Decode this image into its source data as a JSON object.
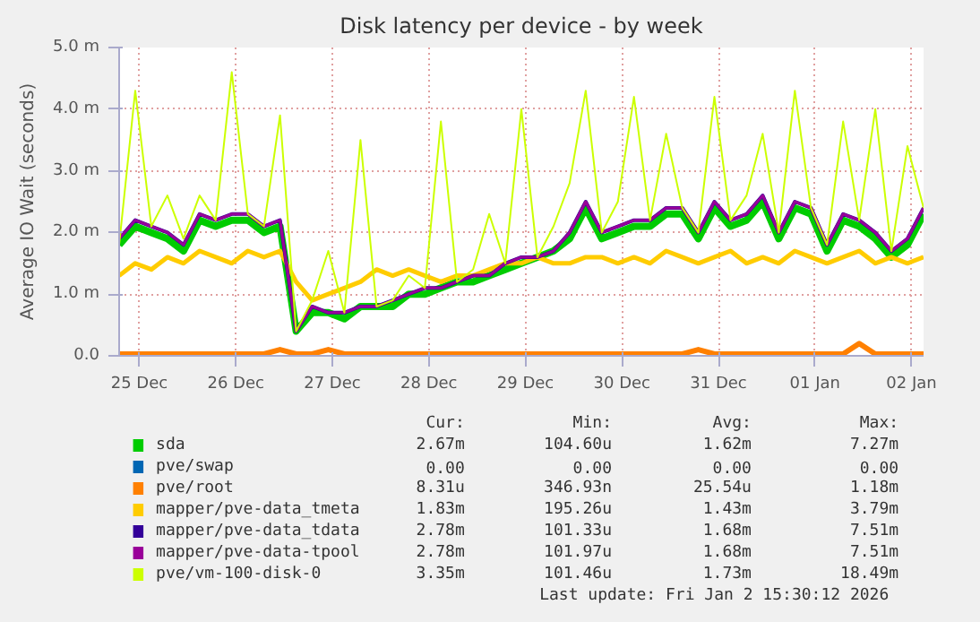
{
  "chart_data": {
    "type": "line",
    "title": "Disk latency per device - by week",
    "ylabel": "Average IO Wait (seconds)",
    "x": [
      "2025-12-24T19:00",
      "2025-12-24T23:00",
      "2025-12-25T03:00",
      "2025-12-25T07:00",
      "2025-12-25T11:00",
      "2025-12-25T15:00",
      "2025-12-25T19:00",
      "2025-12-25T23:00",
      "2025-12-26T03:00",
      "2025-12-26T07:00",
      "2025-12-26T11:00",
      "2025-12-26T15:00",
      "2025-12-26T19:00",
      "2025-12-26T23:00",
      "2025-12-27T03:00",
      "2025-12-27T07:00",
      "2025-12-27T11:00",
      "2025-12-27T15:00",
      "2025-12-27T19:00",
      "2025-12-27T23:00",
      "2025-12-28T03:00",
      "2025-12-28T07:00",
      "2025-12-28T11:00",
      "2025-12-28T15:00",
      "2025-12-28T19:00",
      "2025-12-28T23:00",
      "2025-12-29T03:00",
      "2025-12-29T07:00",
      "2025-12-29T11:00",
      "2025-12-29T15:00",
      "2025-12-29T19:00",
      "2025-12-29T23:00",
      "2025-12-30T03:00",
      "2025-12-30T07:00",
      "2025-12-30T11:00",
      "2025-12-30T15:00",
      "2025-12-30T19:00",
      "2025-12-30T23:00",
      "2025-12-31T03:00",
      "2025-12-31T07:00",
      "2025-12-31T11:00",
      "2025-12-31T15:00",
      "2025-12-31T19:00",
      "2025-12-31T23:00",
      "2026-01-01T03:00",
      "2026-01-01T07:00",
      "2026-01-01T11:00",
      "2026-01-01T15:00",
      "2026-01-01T19:00",
      "2026-01-01T23:00",
      "2026-01-02T03:00"
    ],
    "xlim": [
      "2025-12-24T19:00",
      "2026-01-02T03:00"
    ],
    "xticks": [
      {
        "value": "2025-12-25",
        "label": "25 Dec"
      },
      {
        "value": "2025-12-26",
        "label": "26 Dec"
      },
      {
        "value": "2025-12-27",
        "label": "27 Dec"
      },
      {
        "value": "2025-12-28",
        "label": "28 Dec"
      },
      {
        "value": "2025-12-29",
        "label": "29 Dec"
      },
      {
        "value": "2025-12-30",
        "label": "30 Dec"
      },
      {
        "value": "2025-12-31",
        "label": "31 Dec"
      },
      {
        "value": "2026-01-01",
        "label": "01 Jan"
      },
      {
        "value": "2026-01-02",
        "label": "02 Jan"
      }
    ],
    "ylim": [
      0,
      5.0
    ],
    "yticks": [
      {
        "value": 0,
        "label": "0.0"
      },
      {
        "value": 1,
        "label": "1.0 m"
      },
      {
        "value": 2,
        "label": "2.0 m"
      },
      {
        "value": 3,
        "label": "3.0 m"
      },
      {
        "value": 4,
        "label": "4.0 m"
      },
      {
        "value": 5,
        "label": "5.0 m"
      }
    ],
    "grid": true,
    "legend": "bottom",
    "series": [
      {
        "name": "sda",
        "color": "#00cc00",
        "values": [
          1.8,
          2.1,
          2.0,
          1.9,
          1.7,
          2.2,
          2.1,
          2.2,
          2.2,
          2.0,
          2.1,
          0.4,
          0.7,
          0.7,
          0.6,
          0.8,
          0.8,
          0.8,
          1.0,
          1.0,
          1.1,
          1.2,
          1.2,
          1.3,
          1.4,
          1.5,
          1.6,
          1.7,
          1.9,
          2.4,
          1.9,
          2.0,
          2.1,
          2.1,
          2.3,
          2.3,
          1.9,
          2.4,
          2.1,
          2.2,
          2.5,
          1.9,
          2.4,
          2.3,
          1.7,
          2.2,
          2.1,
          1.9,
          1.6,
          1.8,
          2.3
        ]
      },
      {
        "name": "pve/swap",
        "color": "#0066b3",
        "values": [
          null,
          null,
          null,
          null,
          null,
          null,
          null,
          null,
          null,
          null,
          null,
          null,
          null,
          null,
          null,
          null,
          null,
          null,
          null,
          null,
          null,
          null,
          null,
          null,
          null,
          null,
          null,
          null,
          null,
          null,
          null,
          null,
          null,
          null,
          null,
          null,
          null,
          null,
          null,
          null,
          null,
          null,
          null,
          null,
          null,
          null,
          null,
          null,
          null,
          null,
          null
        ]
      },
      {
        "name": "pve/root",
        "color": "#ff8000",
        "values": [
          0.03,
          0.03,
          0.03,
          0.03,
          0.03,
          0.03,
          0.03,
          0.03,
          0.03,
          0.03,
          0.1,
          0.03,
          0.03,
          0.1,
          0.03,
          0.03,
          0.03,
          0.03,
          0.03,
          0.03,
          0.03,
          0.03,
          0.03,
          0.03,
          0.03,
          0.03,
          0.03,
          0.03,
          0.03,
          0.03,
          0.03,
          0.03,
          0.03,
          0.03,
          0.03,
          0.03,
          0.1,
          0.03,
          0.03,
          0.03,
          0.03,
          0.03,
          0.03,
          0.03,
          0.03,
          0.03,
          0.2,
          0.03,
          0.03,
          0.03,
          0.03
        ]
      },
      {
        "name": "mapper/pve-data_tmeta",
        "color": "#ffcc00",
        "values": [
          1.3,
          1.5,
          1.4,
          1.6,
          1.5,
          1.7,
          1.6,
          1.5,
          1.7,
          1.6,
          1.7,
          1.2,
          0.9,
          1.0,
          1.1,
          1.2,
          1.4,
          1.3,
          1.4,
          1.3,
          1.2,
          1.3,
          1.3,
          1.4,
          1.5,
          1.5,
          1.6,
          1.5,
          1.5,
          1.6,
          1.6,
          1.5,
          1.6,
          1.5,
          1.7,
          1.6,
          1.5,
          1.6,
          1.7,
          1.5,
          1.6,
          1.5,
          1.7,
          1.6,
          1.5,
          1.6,
          1.7,
          1.5,
          1.6,
          1.5,
          1.6
        ]
      },
      {
        "name": "mapper/pve-data_tdata",
        "color": "#330099",
        "values": [
          1.9,
          2.2,
          2.1,
          2.0,
          1.8,
          2.3,
          2.2,
          2.3,
          2.3,
          2.1,
          2.2,
          0.4,
          0.8,
          0.7,
          0.7,
          0.8,
          0.8,
          0.9,
          1.0,
          1.1,
          1.1,
          1.2,
          1.3,
          1.3,
          1.5,
          1.6,
          1.6,
          1.7,
          2.0,
          2.5,
          2.0,
          2.1,
          2.2,
          2.2,
          2.4,
          2.4,
          2.0,
          2.5,
          2.2,
          2.3,
          2.6,
          2.0,
          2.5,
          2.4,
          1.8,
          2.3,
          2.2,
          2.0,
          1.7,
          1.9,
          2.4
        ]
      },
      {
        "name": "mapper/pve-data-tpool",
        "color": "#990099",
        "values": [
          1.9,
          2.2,
          2.1,
          2.0,
          1.8,
          2.3,
          2.2,
          2.3,
          2.3,
          2.1,
          2.2,
          0.4,
          0.8,
          0.7,
          0.7,
          0.8,
          0.8,
          0.9,
          1.0,
          1.1,
          1.1,
          1.2,
          1.3,
          1.3,
          1.5,
          1.6,
          1.6,
          1.7,
          2.0,
          2.5,
          2.0,
          2.1,
          2.2,
          2.2,
          2.4,
          2.4,
          2.0,
          2.5,
          2.2,
          2.3,
          2.6,
          2.0,
          2.5,
          2.4,
          1.8,
          2.3,
          2.2,
          2.0,
          1.7,
          1.9,
          2.4
        ]
      },
      {
        "name": "pve/vm-100-disk-0",
        "color": "#ccff00",
        "values": [
          1.8,
          4.3,
          2.1,
          2.6,
          1.9,
          2.6,
          2.2,
          4.6,
          2.3,
          2.1,
          3.9,
          0.4,
          0.9,
          1.7,
          0.7,
          3.5,
          0.8,
          0.9,
          1.3,
          1.1,
          3.8,
          1.2,
          1.4,
          2.3,
          1.5,
          4.0,
          1.6,
          2.1,
          2.8,
          4.3,
          2.0,
          2.5,
          4.2,
          2.2,
          3.6,
          2.4,
          2.0,
          4.2,
          2.2,
          2.6,
          3.6,
          2.0,
          4.3,
          2.4,
          1.8,
          3.8,
          2.2,
          4.0,
          1.7,
          3.4,
          2.4
        ]
      }
    ],
    "annotations": [
      "Cur:",
      "Min:",
      "Avg:",
      "Max:",
      "2.67m",
      "104.60u",
      "1.62m",
      "7.27m",
      "0.00",
      "0.00",
      "0.00",
      "0.00",
      "8.31u",
      "346.93n",
      "25.54u",
      "1.18m",
      "1.83m",
      "195.26u",
      "1.43m",
      "3.79m",
      "2.78m",
      "101.33u",
      "1.68m",
      "7.51m",
      "2.78m",
      "101.97u",
      "1.68m",
      "7.51m",
      "3.35m",
      "101.46u",
      "1.73m",
      "18.49m",
      "Last update: Fri Jan  2 15:30:12 2026"
    ]
  }
}
